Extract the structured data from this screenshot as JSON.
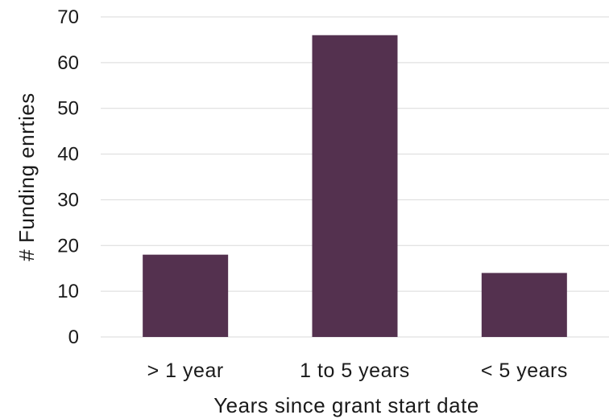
{
  "chart_data": {
    "type": "bar",
    "categories": [
      "> 1 year",
      "1 to 5 years",
      "< 5 years"
    ],
    "values": [
      18,
      66,
      14
    ],
    "title": "",
    "xlabel": "Years since grant start date",
    "ylabel": "# Funding enrties",
    "ylim": [
      0,
      70
    ],
    "yticks": [
      0,
      10,
      20,
      30,
      40,
      50,
      60,
      70
    ],
    "grid": true,
    "bar_color": "#54314f",
    "grid_color": "#d9d9d9"
  }
}
